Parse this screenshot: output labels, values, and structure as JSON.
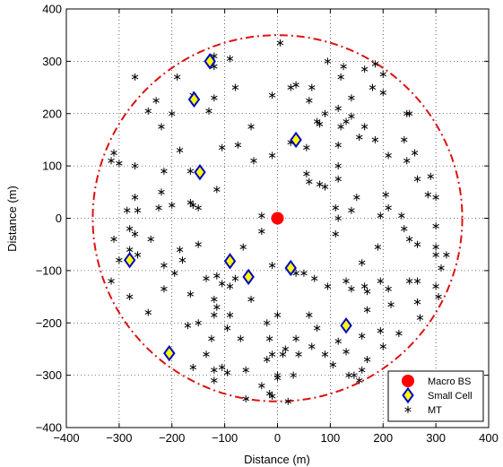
{
  "chart_data": {
    "type": "scatter",
    "xlabel": "Distance (m)",
    "ylabel": "Distance (m)",
    "xlim": [
      -400,
      400
    ],
    "ylim": [
      -400,
      400
    ],
    "xticks": [
      -400,
      -300,
      -200,
      -100,
      0,
      100,
      200,
      300,
      400
    ],
    "yticks": [
      -400,
      -300,
      -200,
      -100,
      0,
      100,
      200,
      300,
      400
    ],
    "xtick_labels": [
      "−400",
      "−300",
      "−200",
      "−100",
      "0",
      "100",
      "200",
      "300",
      "400"
    ],
    "ytick_labels": [
      "−400",
      "−300",
      "−200",
      "−100",
      "0",
      "100",
      "200",
      "300",
      "400"
    ],
    "grid": true,
    "legend_position": "bottom-right",
    "boundary": {
      "shape": "circle",
      "center": [
        0,
        0
      ],
      "radius": 350,
      "color": "#dd1111",
      "style": "dash-dot"
    },
    "series": [
      {
        "name": "Macro BS",
        "marker": "filled-circle",
        "color": "#ff0000",
        "points": [
          [
            0,
            0
          ]
        ]
      },
      {
        "name": "Small Cell",
        "marker": "diamond",
        "fill": "#ffff00",
        "stroke": "#0000cc",
        "points": [
          [
            -158,
            227
          ],
          [
            -128,
            300
          ],
          [
            35,
            150
          ],
          [
            -147,
            88
          ],
          [
            -90,
            -82
          ],
          [
            -55,
            -112
          ],
          [
            25,
            -95
          ],
          [
            -280,
            -80
          ],
          [
            -205,
            -258
          ],
          [
            130,
            -205
          ]
        ]
      },
      {
        "name": "MT",
        "marker": "asterisk",
        "color": "#000000",
        "points": [
          [
            5,
            335
          ],
          [
            -120,
            310
          ],
          [
            -90,
            305
          ],
          [
            -120,
            290
          ],
          [
            95,
            300
          ],
          [
            185,
            295
          ],
          [
            165,
            285
          ],
          [
            125,
            290
          ],
          [
            -270,
            270
          ],
          [
            -190,
            270
          ],
          [
            120,
            270
          ],
          [
            200,
            275
          ],
          [
            -80,
            250
          ],
          [
            35,
            255
          ],
          [
            65,
            250
          ],
          [
            25,
            250
          ],
          [
            180,
            250
          ],
          [
            200,
            240
          ],
          [
            -160,
            235
          ],
          [
            -120,
            230
          ],
          [
            -230,
            225
          ],
          [
            -10,
            235
          ],
          [
            60,
            225
          ],
          [
            140,
            230
          ],
          [
            -245,
            205
          ],
          [
            -200,
            200
          ],
          [
            -130,
            205
          ],
          [
            90,
            200
          ],
          [
            115,
            210
          ],
          [
            245,
            200
          ],
          [
            250,
            200
          ],
          [
            140,
            195
          ],
          [
            -220,
            175
          ],
          [
            130,
            185
          ],
          [
            165,
            175
          ],
          [
            155,
            155
          ],
          [
            -50,
            175
          ],
          [
            80,
            180
          ],
          [
            75,
            185
          ],
          [
            120,
            175
          ],
          [
            -185,
            130
          ],
          [
            -105,
            135
          ],
          [
            25,
            145
          ],
          [
            55,
            135
          ],
          [
            240,
            150
          ],
          [
            -310,
            125
          ],
          [
            -300,
            105
          ],
          [
            -270,
            100
          ],
          [
            -215,
            90
          ],
          [
            -75,
            140
          ],
          [
            -10,
            120
          ],
          [
            115,
            140
          ],
          [
            185,
            150
          ],
          [
            210,
            120
          ],
          [
            -315,
            110
          ],
          [
            -45,
            110
          ],
          [
            -165,
            90
          ],
          [
            55,
            85
          ],
          [
            60,
            70
          ],
          [
            115,
            100
          ],
          [
            260,
            125
          ],
          [
            265,
            75
          ],
          [
            290,
            80
          ],
          [
            245,
            110
          ],
          [
            -220,
            50
          ],
          [
            80,
            65
          ],
          [
            90,
            60
          ],
          [
            115,
            75
          ],
          [
            -225,
            20
          ],
          [
            -160,
            25
          ],
          [
            -30,
            5
          ],
          [
            150,
            40
          ],
          [
            205,
            45
          ],
          [
            210,
            20
          ],
          [
            285,
            45
          ],
          [
            300,
            40
          ],
          [
            -270,
            40
          ],
          [
            -285,
            15
          ],
          [
            -265,
            15
          ],
          [
            -115,
            55
          ],
          [
            -280,
            -20
          ],
          [
            -200,
            25
          ],
          [
            -150,
            20
          ],
          [
            140,
            15
          ],
          [
            115,
            0
          ],
          [
            195,
            5
          ],
          [
            235,
            5
          ],
          [
            -150,
            -50
          ],
          [
            -310,
            -40
          ],
          [
            -270,
            -30
          ],
          [
            -240,
            -40
          ],
          [
            -165,
            30
          ],
          [
            -30,
            -25
          ],
          [
            110,
            -30
          ],
          [
            240,
            -20
          ],
          [
            300,
            -15
          ],
          [
            -280,
            -60
          ],
          [
            -185,
            -60
          ],
          [
            -65,
            -55
          ],
          [
            110,
            20
          ],
          [
            190,
            -55
          ],
          [
            250,
            -40
          ],
          [
            265,
            -50
          ],
          [
            300,
            -55
          ],
          [
            -300,
            -80
          ],
          [
            -265,
            -70
          ],
          [
            -215,
            -90
          ],
          [
            -180,
            -80
          ],
          [
            -115,
            -110
          ],
          [
            -80,
            -115
          ],
          [
            -10,
            -90
          ],
          [
            50,
            -105
          ],
          [
            95,
            -130
          ],
          [
            130,
            -120
          ],
          [
            160,
            -85
          ],
          [
            195,
            -120
          ],
          [
            265,
            -120
          ],
          [
            300,
            -70
          ],
          [
            320,
            -70
          ],
          [
            310,
            -95
          ],
          [
            -315,
            -120
          ],
          [
            -195,
            -105
          ],
          [
            -135,
            -115
          ],
          [
            -105,
            -125
          ],
          [
            35,
            -105
          ],
          [
            70,
            -115
          ],
          [
            140,
            -135
          ],
          [
            170,
            -140
          ],
          [
            165,
            -130
          ],
          [
            210,
            -135
          ],
          [
            250,
            -120
          ],
          [
            300,
            -130
          ],
          [
            305,
            -150
          ],
          [
            -280,
            -150
          ],
          [
            -215,
            -135
          ],
          [
            -165,
            -145
          ],
          [
            -120,
            -155
          ],
          [
            -90,
            -130
          ],
          [
            -50,
            -155
          ],
          [
            -120,
            -185
          ],
          [
            -115,
            -170
          ],
          [
            -90,
            -185
          ],
          [
            0,
            -185
          ],
          [
            60,
            -185
          ],
          [
            170,
            -175
          ],
          [
            215,
            -165
          ],
          [
            265,
            -160
          ],
          [
            270,
            -190
          ],
          [
            -245,
            -180
          ],
          [
            -170,
            -205
          ],
          [
            -150,
            -200
          ],
          [
            -95,
            -210
          ],
          [
            -20,
            -200
          ],
          [
            -15,
            -230
          ],
          [
            35,
            -230
          ],
          [
            75,
            -210
          ],
          [
            115,
            -235
          ],
          [
            160,
            -225
          ],
          [
            195,
            -215
          ],
          [
            230,
            -220
          ],
          [
            -135,
            -260
          ],
          [
            -125,
            -230
          ],
          [
            -70,
            -230
          ],
          [
            -10,
            -260
          ],
          [
            15,
            -250
          ],
          [
            65,
            -245
          ],
          [
            90,
            -260
          ],
          [
            130,
            -255
          ],
          [
            170,
            -270
          ],
          [
            200,
            -245
          ],
          [
            -160,
            -285
          ],
          [
            -105,
            -285
          ],
          [
            -120,
            -290
          ],
          [
            -60,
            -290
          ],
          [
            10,
            -260
          ],
          [
            40,
            -260
          ],
          [
            -120,
            -310
          ],
          [
            -95,
            -295
          ],
          [
            -20,
            -270
          ],
          [
            0,
            -300
          ],
          [
            30,
            -300
          ],
          [
            105,
            -280
          ],
          [
            145,
            -300
          ],
          [
            160,
            -290
          ],
          [
            -60,
            -345
          ],
          [
            0,
            -305
          ],
          [
            20,
            -350
          ],
          [
            -15,
            -335
          ],
          [
            -30,
            -320
          ],
          [
            135,
            -300
          ],
          [
            155,
            -310
          ],
          [
            -10,
            -340
          ]
        ]
      }
    ]
  }
}
